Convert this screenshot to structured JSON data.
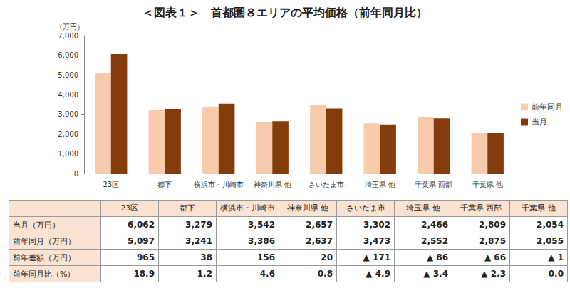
{
  "chart_data": {
    "type": "bar",
    "title": "＜図表１＞　首都圏８エリアの平均価格（前年同月比）",
    "y_label": "（万円）",
    "categories": [
      "23区",
      "都下",
      "横浜市・川崎市",
      "神奈川県 他",
      "さいたま市",
      "埼玉県 他",
      "千葉県 西部",
      "千葉県 他"
    ],
    "series": [
      {
        "name": "前年同月",
        "color": "#f8cbad",
        "values": [
          5097,
          3241,
          3386,
          2637,
          3473,
          2552,
          2875,
          2055
        ]
      },
      {
        "name": "当月",
        "color": "#843c0c",
        "values": [
          6062,
          3279,
          3542,
          2657,
          3302,
          2466,
          2809,
          2054
        ]
      }
    ],
    "ylim": [
      0,
      7000
    ],
    "yticks": [
      0,
      {
        "value": 1000,
        "label": "1,000"
      },
      {
        "value": 2000,
        "label": "2,000"
      },
      {
        "value": 3000,
        "label": "3,000"
      },
      {
        "value": 4000,
        "label": "4,000"
      },
      {
        "value": 5000,
        "label": "5,000"
      },
      {
        "value": 6000,
        "label": "6,000"
      },
      {
        "value": 7000,
        "label": "7,000"
      }
    ],
    "grid": false,
    "legend": "right"
  },
  "table": {
    "columns": [
      "23区",
      "都下",
      "横浜市・川崎市",
      "神奈川県 他",
      "さいたま市",
      "埼玉県 他",
      "千葉県 西部",
      "千葉県 他"
    ],
    "rows": [
      {
        "label": "当月（万円）",
        "cells": [
          "6,062",
          "3,279",
          "3,542",
          "2,657",
          "3,302",
          "2,466",
          "2,809",
          "2,054"
        ]
      },
      {
        "label": "前年同月（万円）",
        "cells": [
          "5,097",
          "3,241",
          "3,386",
          "2,637",
          "3,473",
          "2,552",
          "2,875",
          "2,055"
        ]
      },
      {
        "label": "前年差額（万円）",
        "cells": [
          "965",
          "38",
          "156",
          "20",
          "▲ 171",
          "▲ 86",
          "▲ 66",
          "▲ 1"
        ]
      },
      {
        "label": "前年同月比（%）",
        "cells": [
          "18.9",
          "1.2",
          "4.6",
          "0.8",
          "▲ 4.9",
          "▲ 3.4",
          "▲ 2.3",
          "0.0"
        ]
      }
    ]
  }
}
